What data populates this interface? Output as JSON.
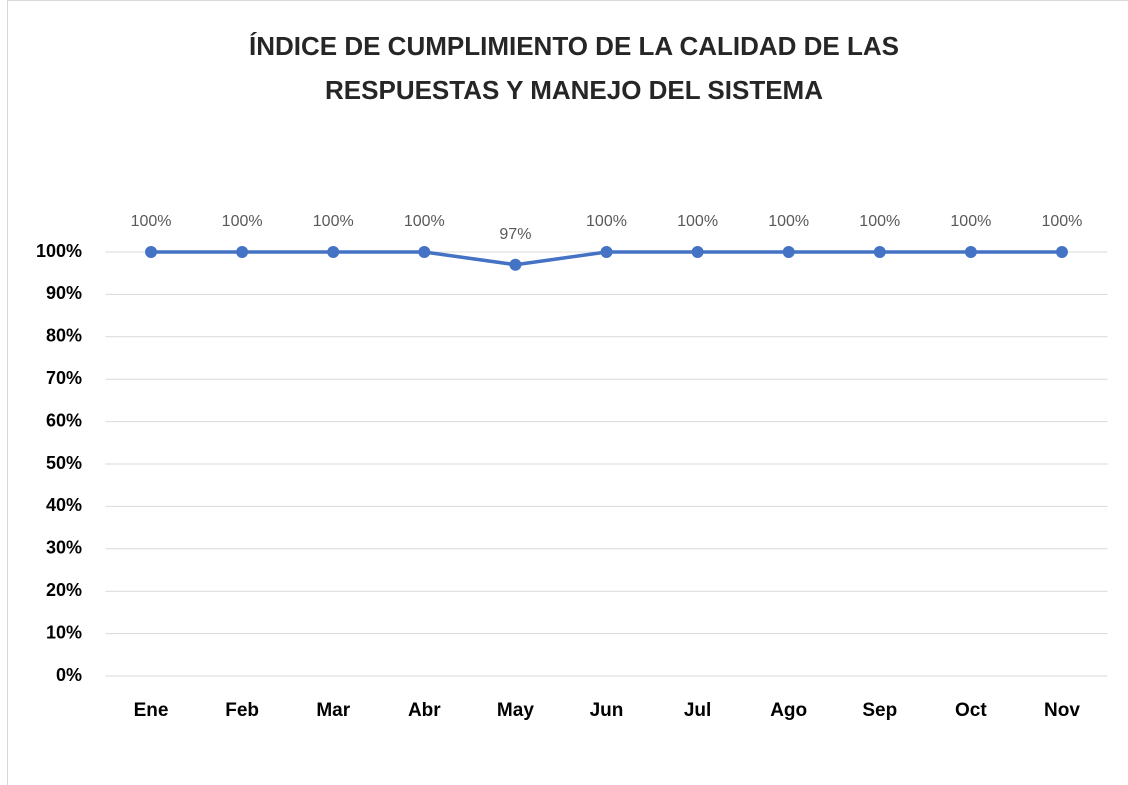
{
  "chart_data": {
    "type": "line",
    "title": [
      "ÍNDICE DE CUMPLIMIENTO DE LA CALIDAD DE LAS",
      "RESPUESTAS Y MANEJO DEL SISTEMA"
    ],
    "categories": [
      "Ene",
      "Feb",
      "Mar",
      "Abr",
      "May",
      "Jun",
      "Jul",
      "Ago",
      "Sep",
      "Oct",
      "Nov"
    ],
    "series": [
      {
        "name": "Índice",
        "color": "#4472c4",
        "values": [
          100,
          100,
          100,
          100,
          97,
          100,
          100,
          100,
          100,
          100,
          100
        ],
        "value_labels": [
          "100%",
          "100%",
          "100%",
          "100%",
          "97%",
          "100%",
          "100%",
          "100%",
          "100%",
          "100%",
          "100%"
        ]
      }
    ],
    "ylim": [
      0,
      100
    ],
    "yticks": [
      {
        "value": 0,
        "label": "0%"
      },
      {
        "value": 10,
        "label": "10%"
      },
      {
        "value": 20,
        "label": "20%"
      },
      {
        "value": 30,
        "label": "30%"
      },
      {
        "value": 40,
        "label": "40%"
      },
      {
        "value": 50,
        "label": "50%"
      },
      {
        "value": 60,
        "label": "60%"
      },
      {
        "value": 70,
        "label": "70%"
      },
      {
        "value": 80,
        "label": "80%"
      },
      {
        "value": 90,
        "label": "90%"
      },
      {
        "value": 100,
        "label": "100%"
      }
    ],
    "grid": true
  }
}
